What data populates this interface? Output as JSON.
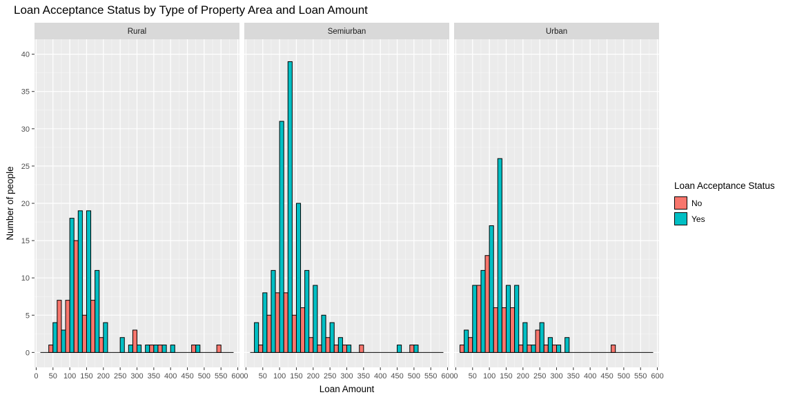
{
  "chart_data": {
    "type": "bar",
    "title": "Loan Acceptance Status by Type of Property Area and Loan Amount",
    "xlabel": "Loan Amount",
    "ylabel": "Number of people",
    "xlim": [
      -5,
      605
    ],
    "ylim": [
      -2,
      42
    ],
    "x_ticks": [
      0,
      50,
      100,
      150,
      200,
      250,
      300,
      350,
      400,
      450,
      500,
      550,
      600
    ],
    "y_ticks": [
      0,
      5,
      10,
      15,
      20,
      25,
      30,
      35,
      40
    ],
    "bin_width": 25,
    "bin_centers": [
      25,
      50,
      75,
      100,
      125,
      150,
      175,
      200,
      225,
      250,
      275,
      300,
      325,
      350,
      375,
      400,
      425,
      450,
      475,
      500,
      525,
      550,
      575
    ],
    "legend": {
      "title": "Loan Acceptance Status",
      "position": "right",
      "entries": [
        {
          "label": "No",
          "color": "#F8766D"
        },
        {
          "label": "Yes",
          "color": "#00BFC4"
        }
      ]
    },
    "colors": {
      "No": "#F8766D",
      "Yes": "#00BFC4",
      "panel_bg": "#EBEBEB",
      "strip_bg": "#D9D9D9",
      "grid": "#FFFFFF"
    },
    "facets": [
      {
        "name": "Rural",
        "series": [
          {
            "name": "No",
            "values": [
              0,
              1,
              7,
              7,
              15,
              5,
              7,
              2,
              0,
              0,
              0,
              3,
              0,
              1,
              1,
              0,
              0,
              0,
              1,
              0,
              0,
              1,
              0
            ]
          },
          {
            "name": "Yes",
            "values": [
              0,
              4,
              3,
              18,
              19,
              19,
              11,
              4,
              0,
              2,
              1,
              1,
              1,
              1,
              1,
              1,
              0,
              0,
              1,
              0,
              0,
              0,
              0
            ]
          }
        ]
      },
      {
        "name": "Semiurban",
        "series": [
          {
            "name": "No",
            "values": [
              0,
              1,
              5,
              8,
              8,
              5,
              6,
              2,
              1,
              2,
              1,
              1,
              0,
              1,
              0,
              0,
              0,
              0,
              0,
              1,
              0,
              0,
              0
            ]
          },
          {
            "name": "Yes",
            "values": [
              4,
              8,
              11,
              31,
              39,
              20,
              11,
              9,
              5,
              4,
              2,
              1,
              0,
              0,
              0,
              0,
              0,
              1,
              0,
              1,
              0,
              0,
              0
            ]
          }
        ]
      },
      {
        "name": "Urban",
        "series": [
          {
            "name": "No",
            "values": [
              1,
              2,
              9,
              13,
              6,
              6,
              6,
              1,
              1,
              3,
              1,
              1,
              0,
              0,
              0,
              0,
              0,
              0,
              1,
              0,
              0,
              0,
              0
            ]
          },
          {
            "name": "Yes",
            "values": [
              3,
              9,
              11,
              17,
              26,
              9,
              9,
              4,
              1,
              4,
              2,
              1,
              2,
              0,
              0,
              0,
              0,
              0,
              0,
              0,
              0,
              0,
              0
            ]
          }
        ]
      }
    ]
  }
}
